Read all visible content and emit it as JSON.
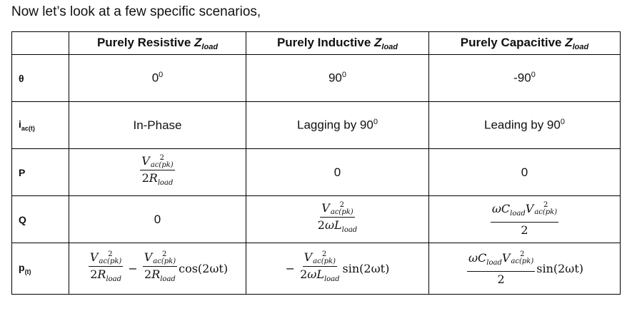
{
  "intro": "Now let’s look at a few specific scenarios,",
  "header": {
    "col1": "Purely Resistive",
    "col2": "Purely Inductive",
    "col3": "Purely Capacitive",
    "z": "Z",
    "z_sub": "load"
  },
  "rows": {
    "theta": {
      "label": "θ",
      "resistive": "0",
      "resistive_sup": "0",
      "inductive": "90",
      "inductive_sup": "0",
      "capacitive": "-90",
      "capacitive_sup": "0"
    },
    "iac": {
      "label": "i",
      "label_sub": "ac(t)",
      "resistive": "In-Phase",
      "inductive": "Lagging by 90",
      "inductive_sup": "0",
      "capacitive": "Leading by 90",
      "capacitive_sup": "0"
    },
    "p": {
      "label": "P",
      "inductive": "0",
      "capacitive": "0"
    },
    "q": {
      "label": "Q",
      "resistive": "0"
    },
    "pt": {
      "label": "p",
      "label_sub": "(t)"
    }
  },
  "math": {
    "V": "V",
    "sq": "2",
    "acpk": "ac(pk)",
    "two": "2",
    "R": "R",
    "L": "L",
    "C": "C",
    "load": "load",
    "omega": "ω",
    "minus": "−",
    "cos": "cos(2ωt)",
    "sin": "sin(2ωt)"
  }
}
